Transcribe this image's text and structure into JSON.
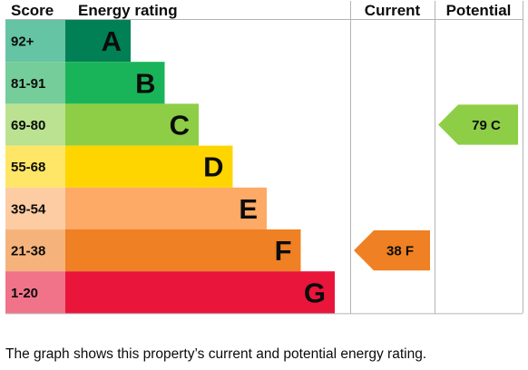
{
  "chart_data": {
    "type": "bar",
    "headers": {
      "score": "Score",
      "rating": "Energy rating",
      "current": "Current",
      "potential": "Potential"
    },
    "bands": [
      {
        "score": "92+",
        "letter": "A",
        "color": "#008054",
        "score_color": "#64c4a3"
      },
      {
        "score": "81-91",
        "letter": "B",
        "color": "#19b459",
        "score_color": "#75cd9a"
      },
      {
        "score": "69-80",
        "letter": "C",
        "color": "#8dce46",
        "score_color": "#bae290"
      },
      {
        "score": "55-68",
        "letter": "D",
        "color": "#ffd500",
        "score_color": "#ffe666"
      },
      {
        "score": "39-54",
        "letter": "E",
        "color": "#fcaa65",
        "score_color": "#fdcca3"
      },
      {
        "score": "21-38",
        "letter": "F",
        "color": "#ef8023",
        "score_color": "#f5b37b"
      },
      {
        "score": "1-20",
        "letter": "G",
        "color": "#e9153b",
        "score_color": "#f17389"
      }
    ],
    "current": {
      "value": 38,
      "letter": "F",
      "label": "38 F",
      "color": "#ef8023"
    },
    "potential": {
      "value": 79,
      "letter": "C",
      "label": "79 C",
      "color": "#8dce46"
    }
  },
  "caption": "The graph shows this property’s current and potential energy rating."
}
